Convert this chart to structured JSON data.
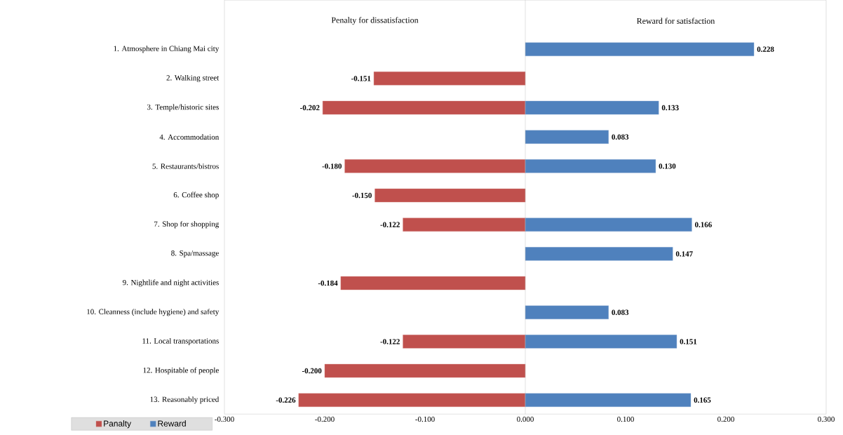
{
  "chart_data": {
    "type": "bar",
    "orientation": "horizontal",
    "categories": [
      "1. Atmosphere in Chiang Mai city",
      "2. Walking street",
      "3. Temple/historic sites",
      "4. Accommodation",
      "5. Restaurants/bistros",
      "6. Coffee shop",
      "7. Shop for shopping",
      "8. Spa/massage",
      "9. Nightlife and night activities",
      "10. Cleanness (include hygiene) and safety",
      "11. Local transportations",
      "12. Hospitable of people",
      "13. Reasonably priced"
    ],
    "series": [
      {
        "name": "Panalty",
        "color": "#c0504d",
        "values": [
          null,
          -0.151,
          -0.202,
          null,
          -0.18,
          -0.15,
          -0.122,
          null,
          -0.184,
          null,
          -0.122,
          -0.2,
          -0.226
        ],
        "value_labels": [
          null,
          "-0.151",
          "-0.202",
          null,
          "-0.180",
          "-0.150",
          "-0.122",
          null,
          "-0.184",
          null,
          "-0.122",
          "-0.200",
          "-0.226"
        ]
      },
      {
        "name": "Reward",
        "color": "#4f81bd",
        "values": [
          0.228,
          null,
          0.133,
          0.083,
          0.13,
          null,
          0.166,
          0.147,
          null,
          0.083,
          0.151,
          null,
          0.165
        ],
        "value_labels": [
          "0.228",
          null,
          "0.133",
          "0.083",
          "0.130",
          null,
          "0.166",
          "0.147",
          null,
          "0.083",
          "0.151",
          null,
          "0.165"
        ]
      }
    ],
    "xlim": [
      -0.3,
      0.3
    ],
    "xticks": [
      {
        "value": -0.3,
        "label": "-0.300"
      },
      {
        "value": -0.2,
        "label": "-0.200"
      },
      {
        "value": -0.1,
        "label": "-0.100"
      },
      {
        "value": 0,
        "label": "0.000"
      },
      {
        "value": 0.1,
        "label": "0.100"
      },
      {
        "value": 0.2,
        "label": "0.200"
      },
      {
        "value": 0.3,
        "label": "0.300"
      }
    ],
    "annotations": [
      "Penalty for dissatisfaction",
      "Reward for satisfaction"
    ],
    "legend": "bottom left"
  }
}
